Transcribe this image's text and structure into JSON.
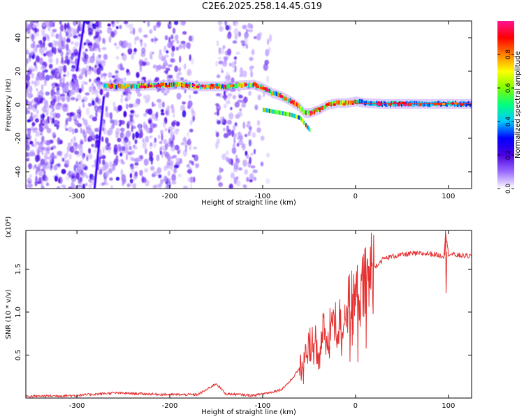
{
  "title": "C2E6.2025.258.14.45.G19",
  "chart_data": [
    {
      "type": "heatmap",
      "name": "spectrogram",
      "xlabel": "Height of straight line (km)",
      "ylabel": "Frequency (Hz)",
      "xlim": [
        -355,
        125
      ],
      "ylim": [
        -50,
        50
      ],
      "xticks": [
        -300,
        -200,
        -100,
        0,
        100
      ],
      "yticks": [
        -40,
        -20,
        0,
        20,
        40
      ],
      "grid": false,
      "ridge": {
        "x": [
          -272,
          -250,
          -220,
          -190,
          -170,
          -140,
          -110,
          -100,
          -90,
          -80,
          -70,
          -62,
          -55,
          -50,
          -45,
          -40,
          -30,
          -20,
          -10,
          0,
          10,
          30,
          60,
          90,
          125
        ],
        "freq": [
          11,
          11,
          11.5,
          12,
          11,
          11,
          12,
          10,
          7,
          5,
          2,
          -1,
          -5,
          -5,
          -4,
          -3,
          0,
          1,
          1,
          2,
          1,
          0.5,
          0.5,
          0.5,
          0.5
        ]
      },
      "secondary_branch": {
        "x": [
          -100,
          -90,
          -80,
          -70,
          -60,
          -50
        ],
        "freq": [
          -3,
          -4,
          -5,
          -6,
          -8,
          -15
        ]
      },
      "colorbar": {
        "label": "Normalized spectral amplitude",
        "ticks": [
          "0.0",
          "0.2",
          "0.4",
          "0.6",
          "0.8"
        ],
        "range": [
          0,
          1
        ],
        "colors": [
          "#ffffff",
          "#9b6bff",
          "#4b00e0",
          "#0000ff",
          "#00c8ff",
          "#00ff80",
          "#80ff00",
          "#ffff00",
          "#ff8000",
          "#ff0000",
          "#ff1493"
        ]
      }
    },
    {
      "type": "line",
      "name": "snr",
      "xlabel": "Height of straight line (km)",
      "ylabel": "SNR (10 * v/v)",
      "scale_label": "(x10⁴)",
      "xlim": [
        -355,
        125
      ],
      "ylim": [
        0,
        1.95
      ],
      "xticks": [
        -300,
        -200,
        -100,
        0,
        100
      ],
      "yticks": [
        "0.5",
        "1.0",
        "1.5"
      ],
      "grid": false,
      "color": "#e53030",
      "series": [
        {
          "name": "SNR",
          "x": [
            -355,
            -300,
            -260,
            -230,
            -200,
            -170,
            -160,
            -150,
            -140,
            -110,
            -100,
            -90,
            -80,
            -70,
            -60,
            -50,
            -45,
            -40,
            -35,
            -30,
            -25,
            -20,
            -10,
            0,
            10,
            20,
            30,
            40,
            60,
            80,
            95,
            97,
            100,
            110,
            125
          ],
          "values": [
            0.02,
            0.03,
            0.06,
            0.05,
            0.04,
            0.04,
            0.1,
            0.17,
            0.05,
            0.03,
            0.05,
            0.07,
            0.1,
            0.2,
            0.35,
            0.6,
            0.75,
            0.5,
            0.8,
            0.6,
            0.95,
            0.8,
            1.05,
            1.15,
            1.3,
            1.52,
            1.62,
            1.65,
            1.68,
            1.68,
            1.65,
            1.92,
            1.68,
            1.66,
            1.65
          ]
        }
      ]
    }
  ]
}
